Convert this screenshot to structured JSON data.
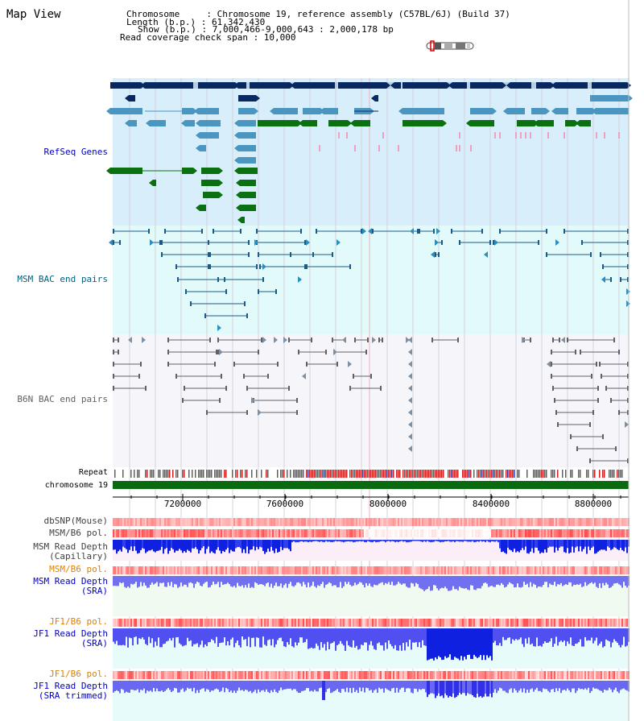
{
  "header": {
    "title": "Map View",
    "info_lines": [
      "Chromosome     : Chromosome 19, reference assembly (C57BL/6J) (Build 37)",
      "Length (b.p.) : 61,342,430",
      "Show (b.p.) : 7,000,466-9,000,643 : 2,000,178 bp",
      "Read coverage check span : 10,000"
    ]
  },
  "tracks": {
    "refseq": "RefSeq Genes",
    "msm_bac": "MSM BAC end pairs",
    "b6n_bac": "B6N BAC end pairs",
    "repeat": "Repeat",
    "chromosome": "chromosome 19",
    "dbsnp": "dbSNP(Mouse)",
    "msm_b6_pol": "MSM/B6 pol.",
    "msm_depth_cap": "MSM Read Depth",
    "msm_depth_cap_sub": "(Capillary)",
    "msm_b6_pol2": "MSM/B6 pol.",
    "msm_depth_sra": "MSM Read Depth",
    "msm_depth_sra_sub": "(SRA)",
    "jf1_b6_pol": "JF1/B6 pol.",
    "jf1_depth_sra": "JF1 Read Depth",
    "jf1_depth_sra_sub": "(SRA)",
    "jf1_b6_pol2": "JF1/B6 pol.",
    "jf1_depth_trim": "JF1 Read Depth",
    "jf1_depth_trim_sub": "(SRA trimmed)"
  },
  "axis": {
    "ticks": [
      "7200000",
      "7600000",
      "8000000",
      "8400000",
      "8800000"
    ]
  },
  "colors": {
    "refseq_label": "#0000c0",
    "msm_label": "#006080",
    "pol_label_orange": "#e08000",
    "depth_label_blue": "#0000c0",
    "gene_dark": "#0a2860",
    "gene_light": "#4a96c0",
    "gene_green": "#0a7010",
    "chromosome_bar": "#0a6a10"
  }
}
